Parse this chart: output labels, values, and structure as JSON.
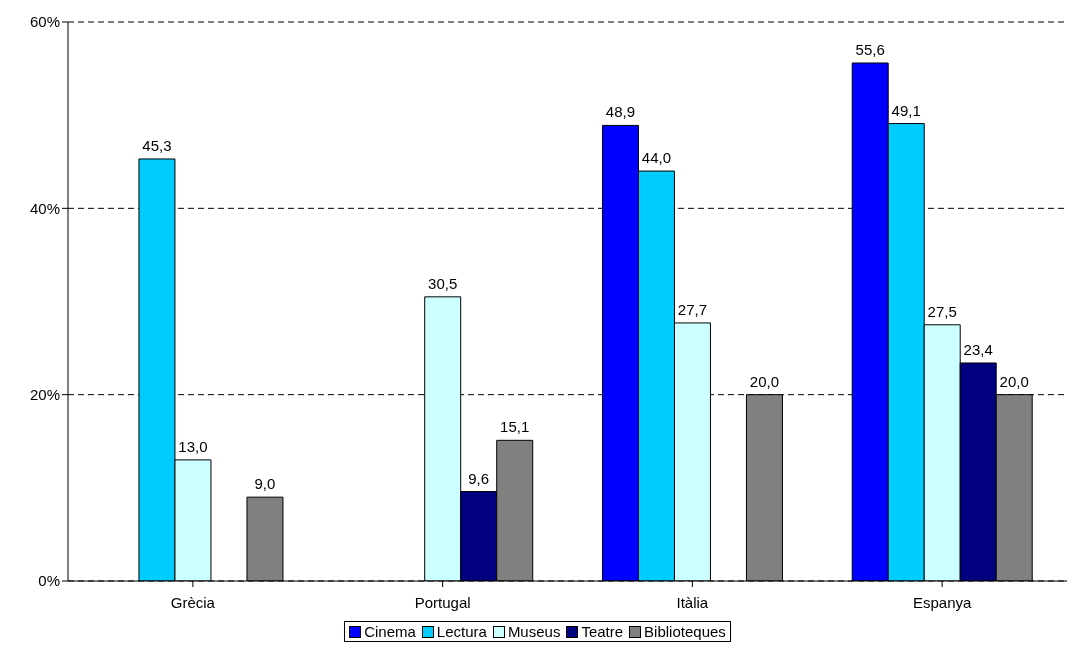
{
  "chart_data": {
    "type": "bar",
    "categories": [
      "Grècia",
      "Portugal",
      "Itàlia",
      "Espanya"
    ],
    "series": [
      {
        "name": "Cinema",
        "color": "#0000ff",
        "values": [
          null,
          null,
          48.9,
          55.6
        ],
        "value_labels": [
          null,
          null,
          "48,9",
          "55,6"
        ]
      },
      {
        "name": "Lectura",
        "color": "#00ccff",
        "values": [
          45.3,
          null,
          44.0,
          49.1
        ],
        "value_labels": [
          "45,3",
          null,
          "44,0",
          "49,1"
        ]
      },
      {
        "name": "Museus",
        "color": "#ccffff",
        "values": [
          13.0,
          30.5,
          27.7,
          27.5
        ],
        "value_labels": [
          "13,0",
          "30,5",
          "27,7",
          "27,5"
        ]
      },
      {
        "name": "Teatre",
        "color": "#000080",
        "values": [
          null,
          9.6,
          null,
          23.4
        ],
        "value_labels": [
          null,
          "9,6",
          null,
          "23,4"
        ]
      },
      {
        "name": "Biblioteques",
        "color": "#808080",
        "values": [
          9.0,
          15.1,
          20.0,
          20.0
        ],
        "value_labels": [
          "9,0",
          "15,1",
          "20,0",
          "20,0"
        ]
      }
    ],
    "ylim": [
      0,
      60
    ],
    "yticks": [
      {
        "value": 0,
        "label": "0%"
      },
      {
        "value": 20,
        "label": "20%"
      },
      {
        "value": 40,
        "label": "40%"
      },
      {
        "value": 60,
        "label": "60%"
      }
    ],
    "grid": "y",
    "line_style": "dashed",
    "legend": "bottom"
  }
}
